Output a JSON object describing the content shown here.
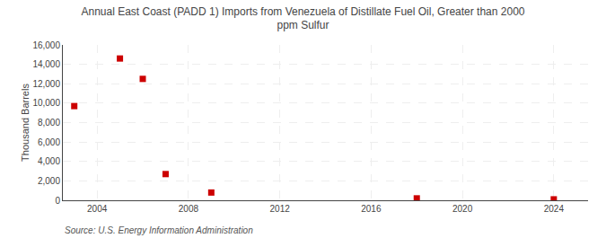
{
  "chart_data": {
    "type": "scatter",
    "title": "Annual East Coast (PADD 1) Imports from Venezuela of Distillate Fuel Oil, Greater than 2000\nppm Sulfur",
    "ylabel": "Thousand Barrels",
    "annotations": [
      "Source: U.S. Energy Information Administration"
    ],
    "x": [
      2003,
      2005,
      2006,
      2007,
      2009,
      2018,
      2024
    ],
    "values": [
      9700,
      14600,
      12500,
      2700,
      800,
      200,
      100
    ],
    "color": "#cc0000",
    "marker": "square",
    "xlim": [
      2002.5,
      2025.5
    ],
    "xticks": [
      2004,
      2008,
      2012,
      2016,
      2020,
      2024
    ],
    "ylim": [
      0,
      16000
    ],
    "yticks": [
      0,
      {
        "value": 2000,
        "label": "2,000"
      },
      {
        "value": 4000,
        "label": "4,000"
      },
      {
        "value": 6000,
        "label": "6,000"
      },
      {
        "value": 8000,
        "label": "8,000"
      },
      {
        "value": 10000,
        "label": "10,000"
      },
      {
        "value": 12000,
        "label": "12,000"
      },
      {
        "value": 14000,
        "label": "14,000"
      },
      {
        "value": 16000,
        "label": "16,000"
      }
    ],
    "grid": true
  }
}
